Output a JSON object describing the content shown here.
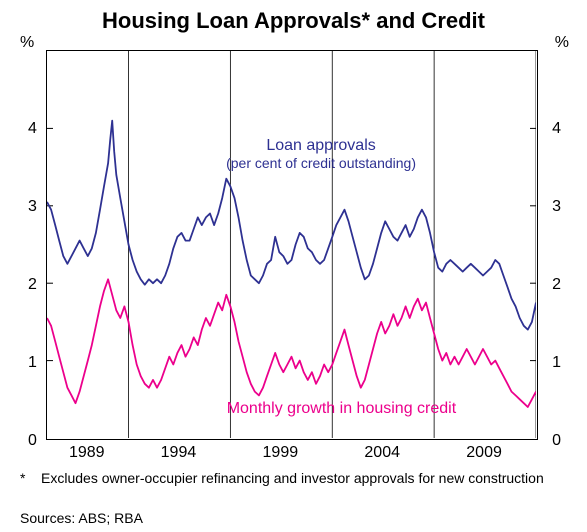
{
  "title": "Housing Loan Approvals* and Credit",
  "chart": {
    "type": "line",
    "x_domain": [
      1985,
      2009
    ],
    "y_domain": [
      0,
      5
    ],
    "y_unit": "%",
    "y_ticks": [
      0,
      1,
      2,
      3,
      4
    ],
    "x_ticks": [
      1989,
      1994,
      1999,
      2004,
      2009
    ],
    "background_color": "#ffffff",
    "border_color": "#000000",
    "gridline_color": "#000000",
    "tick_fontsize": 16,
    "title_fontsize": 22,
    "annotation_fontsize": 16,
    "footnote_fontsize": 14,
    "series": [
      {
        "name": "loan_approvals",
        "label": "Loan approvals",
        "sublabel": "(per cent of credit outstanding)",
        "color": "#2e3192",
        "line_width": 1.8,
        "annotation_pos": {
          "x": 1998.5,
          "y": 3.75
        },
        "data": [
          [
            1985.0,
            3.05
          ],
          [
            1985.2,
            2.95
          ],
          [
            1985.4,
            2.75
          ],
          [
            1985.6,
            2.55
          ],
          [
            1985.8,
            2.35
          ],
          [
            1986.0,
            2.25
          ],
          [
            1986.2,
            2.35
          ],
          [
            1986.4,
            2.45
          ],
          [
            1986.6,
            2.55
          ],
          [
            1986.8,
            2.45
          ],
          [
            1987.0,
            2.35
          ],
          [
            1987.2,
            2.45
          ],
          [
            1987.4,
            2.65
          ],
          [
            1987.6,
            2.95
          ],
          [
            1987.8,
            3.25
          ],
          [
            1988.0,
            3.55
          ],
          [
            1988.1,
            3.85
          ],
          [
            1988.2,
            4.1
          ],
          [
            1988.3,
            3.7
          ],
          [
            1988.4,
            3.4
          ],
          [
            1988.6,
            3.1
          ],
          [
            1988.8,
            2.8
          ],
          [
            1989.0,
            2.5
          ],
          [
            1989.2,
            2.3
          ],
          [
            1989.4,
            2.15
          ],
          [
            1989.6,
            2.05
          ],
          [
            1989.8,
            1.98
          ],
          [
            1990.0,
            2.05
          ],
          [
            1990.2,
            2.0
          ],
          [
            1990.4,
            2.05
          ],
          [
            1990.6,
            2.0
          ],
          [
            1990.8,
            2.1
          ],
          [
            1991.0,
            2.25
          ],
          [
            1991.2,
            2.45
          ],
          [
            1991.4,
            2.6
          ],
          [
            1991.6,
            2.65
          ],
          [
            1991.8,
            2.55
          ],
          [
            1992.0,
            2.55
          ],
          [
            1992.2,
            2.7
          ],
          [
            1992.4,
            2.85
          ],
          [
            1992.6,
            2.75
          ],
          [
            1992.8,
            2.85
          ],
          [
            1993.0,
            2.9
          ],
          [
            1993.2,
            2.75
          ],
          [
            1993.4,
            2.9
          ],
          [
            1993.6,
            3.1
          ],
          [
            1993.8,
            3.35
          ],
          [
            1994.0,
            3.25
          ],
          [
            1994.2,
            3.1
          ],
          [
            1994.4,
            2.85
          ],
          [
            1994.6,
            2.55
          ],
          [
            1994.8,
            2.3
          ],
          [
            1995.0,
            2.1
          ],
          [
            1995.2,
            2.05
          ],
          [
            1995.4,
            2.0
          ],
          [
            1995.6,
            2.1
          ],
          [
            1995.8,
            2.25
          ],
          [
            1996.0,
            2.3
          ],
          [
            1996.2,
            2.6
          ],
          [
            1996.4,
            2.4
          ],
          [
            1996.6,
            2.35
          ],
          [
            1996.8,
            2.25
          ],
          [
            1997.0,
            2.3
          ],
          [
            1997.2,
            2.5
          ],
          [
            1997.4,
            2.65
          ],
          [
            1997.6,
            2.6
          ],
          [
            1997.8,
            2.45
          ],
          [
            1998.0,
            2.4
          ],
          [
            1998.2,
            2.3
          ],
          [
            1998.4,
            2.25
          ],
          [
            1998.6,
            2.3
          ],
          [
            1998.8,
            2.45
          ],
          [
            1999.0,
            2.6
          ],
          [
            1999.2,
            2.75
          ],
          [
            1999.4,
            2.85
          ],
          [
            1999.6,
            2.95
          ],
          [
            1999.8,
            2.8
          ],
          [
            2000.0,
            2.6
          ],
          [
            2000.2,
            2.4
          ],
          [
            2000.4,
            2.2
          ],
          [
            2000.6,
            2.05
          ],
          [
            2000.8,
            2.1
          ],
          [
            2001.0,
            2.25
          ],
          [
            2001.2,
            2.45
          ],
          [
            2001.4,
            2.65
          ],
          [
            2001.6,
            2.8
          ],
          [
            2001.8,
            2.7
          ],
          [
            2002.0,
            2.6
          ],
          [
            2002.2,
            2.55
          ],
          [
            2002.4,
            2.65
          ],
          [
            2002.6,
            2.75
          ],
          [
            2002.8,
            2.6
          ],
          [
            2003.0,
            2.7
          ],
          [
            2003.2,
            2.85
          ],
          [
            2003.4,
            2.95
          ],
          [
            2003.6,
            2.85
          ],
          [
            2003.8,
            2.65
          ],
          [
            2004.0,
            2.4
          ],
          [
            2004.2,
            2.2
          ],
          [
            2004.4,
            2.15
          ],
          [
            2004.6,
            2.25
          ],
          [
            2004.8,
            2.3
          ],
          [
            2005.0,
            2.25
          ],
          [
            2005.2,
            2.2
          ],
          [
            2005.4,
            2.15
          ],
          [
            2005.6,
            2.2
          ],
          [
            2005.8,
            2.25
          ],
          [
            2006.0,
            2.2
          ],
          [
            2006.2,
            2.15
          ],
          [
            2006.4,
            2.1
          ],
          [
            2006.6,
            2.15
          ],
          [
            2006.8,
            2.2
          ],
          [
            2007.0,
            2.3
          ],
          [
            2007.2,
            2.25
          ],
          [
            2007.4,
            2.1
          ],
          [
            2007.6,
            1.95
          ],
          [
            2007.8,
            1.8
          ],
          [
            2008.0,
            1.7
          ],
          [
            2008.2,
            1.55
          ],
          [
            2008.4,
            1.45
          ],
          [
            2008.6,
            1.4
          ],
          [
            2008.8,
            1.5
          ],
          [
            2009.0,
            1.75
          ]
        ]
      },
      {
        "name": "monthly_growth",
        "label": "Monthly growth in housing credit",
        "sublabel": "",
        "color": "#ec008c",
        "line_width": 1.8,
        "annotation_pos": {
          "x": 1999.5,
          "y": 0.35
        },
        "data": [
          [
            1985.0,
            1.55
          ],
          [
            1985.2,
            1.45
          ],
          [
            1985.4,
            1.25
          ],
          [
            1985.6,
            1.05
          ],
          [
            1985.8,
            0.85
          ],
          [
            1986.0,
            0.65
          ],
          [
            1986.2,
            0.55
          ],
          [
            1986.4,
            0.45
          ],
          [
            1986.6,
            0.6
          ],
          [
            1986.8,
            0.8
          ],
          [
            1987.0,
            1.0
          ],
          [
            1987.2,
            1.2
          ],
          [
            1987.4,
            1.45
          ],
          [
            1987.6,
            1.7
          ],
          [
            1987.8,
            1.9
          ],
          [
            1988.0,
            2.05
          ],
          [
            1988.2,
            1.85
          ],
          [
            1988.4,
            1.65
          ],
          [
            1988.6,
            1.55
          ],
          [
            1988.8,
            1.7
          ],
          [
            1989.0,
            1.5
          ],
          [
            1989.2,
            1.2
          ],
          [
            1989.4,
            0.95
          ],
          [
            1989.6,
            0.8
          ],
          [
            1989.8,
            0.7
          ],
          [
            1990.0,
            0.65
          ],
          [
            1990.2,
            0.75
          ],
          [
            1990.4,
            0.65
          ],
          [
            1990.6,
            0.75
          ],
          [
            1990.8,
            0.9
          ],
          [
            1991.0,
            1.05
          ],
          [
            1991.2,
            0.95
          ],
          [
            1991.4,
            1.1
          ],
          [
            1991.6,
            1.2
          ],
          [
            1991.8,
            1.05
          ],
          [
            1992.0,
            1.15
          ],
          [
            1992.2,
            1.3
          ],
          [
            1992.4,
            1.2
          ],
          [
            1992.6,
            1.4
          ],
          [
            1992.8,
            1.55
          ],
          [
            1993.0,
            1.45
          ],
          [
            1993.2,
            1.6
          ],
          [
            1993.4,
            1.75
          ],
          [
            1993.6,
            1.65
          ],
          [
            1993.8,
            1.85
          ],
          [
            1994.0,
            1.7
          ],
          [
            1994.2,
            1.5
          ],
          [
            1994.4,
            1.25
          ],
          [
            1994.6,
            1.05
          ],
          [
            1994.8,
            0.85
          ],
          [
            1995.0,
            0.7
          ],
          [
            1995.2,
            0.6
          ],
          [
            1995.4,
            0.55
          ],
          [
            1995.6,
            0.65
          ],
          [
            1995.8,
            0.8
          ],
          [
            1996.0,
            0.95
          ],
          [
            1996.2,
            1.1
          ],
          [
            1996.4,
            0.95
          ],
          [
            1996.6,
            0.85
          ],
          [
            1996.8,
            0.95
          ],
          [
            1997.0,
            1.05
          ],
          [
            1997.2,
            0.9
          ],
          [
            1997.4,
            1.0
          ],
          [
            1997.6,
            0.85
          ],
          [
            1997.8,
            0.75
          ],
          [
            1998.0,
            0.85
          ],
          [
            1998.2,
            0.7
          ],
          [
            1998.4,
            0.8
          ],
          [
            1998.6,
            0.95
          ],
          [
            1998.8,
            0.85
          ],
          [
            1999.0,
            0.95
          ],
          [
            1999.2,
            1.1
          ],
          [
            1999.4,
            1.25
          ],
          [
            1999.6,
            1.4
          ],
          [
            1999.8,
            1.2
          ],
          [
            2000.0,
            1.0
          ],
          [
            2000.2,
            0.8
          ],
          [
            2000.4,
            0.65
          ],
          [
            2000.6,
            0.75
          ],
          [
            2000.8,
            0.95
          ],
          [
            2001.0,
            1.15
          ],
          [
            2001.2,
            1.35
          ],
          [
            2001.4,
            1.5
          ],
          [
            2001.6,
            1.35
          ],
          [
            2001.8,
            1.45
          ],
          [
            2002.0,
            1.6
          ],
          [
            2002.2,
            1.45
          ],
          [
            2002.4,
            1.55
          ],
          [
            2002.6,
            1.7
          ],
          [
            2002.8,
            1.55
          ],
          [
            2003.0,
            1.7
          ],
          [
            2003.2,
            1.8
          ],
          [
            2003.4,
            1.65
          ],
          [
            2003.6,
            1.75
          ],
          [
            2003.8,
            1.55
          ],
          [
            2004.0,
            1.35
          ],
          [
            2004.2,
            1.15
          ],
          [
            2004.4,
            1.0
          ],
          [
            2004.6,
            1.1
          ],
          [
            2004.8,
            0.95
          ],
          [
            2005.0,
            1.05
          ],
          [
            2005.2,
            0.95
          ],
          [
            2005.4,
            1.05
          ],
          [
            2005.6,
            1.15
          ],
          [
            2005.8,
            1.05
          ],
          [
            2006.0,
            0.95
          ],
          [
            2006.2,
            1.05
          ],
          [
            2006.4,
            1.15
          ],
          [
            2006.6,
            1.05
          ],
          [
            2006.8,
            0.95
          ],
          [
            2007.0,
            1.0
          ],
          [
            2007.2,
            0.9
          ],
          [
            2007.4,
            0.8
          ],
          [
            2007.6,
            0.7
          ],
          [
            2007.8,
            0.6
          ],
          [
            2008.0,
            0.55
          ],
          [
            2008.2,
            0.5
          ],
          [
            2008.4,
            0.45
          ],
          [
            2008.6,
            0.4
          ],
          [
            2008.8,
            0.5
          ],
          [
            2009.0,
            0.6
          ]
        ]
      }
    ]
  },
  "footnote_marker": "*",
  "footnote_text": "Excludes owner-occupier refinancing and investor approvals for new construction",
  "sources_label": "Sources: ABS; RBA"
}
